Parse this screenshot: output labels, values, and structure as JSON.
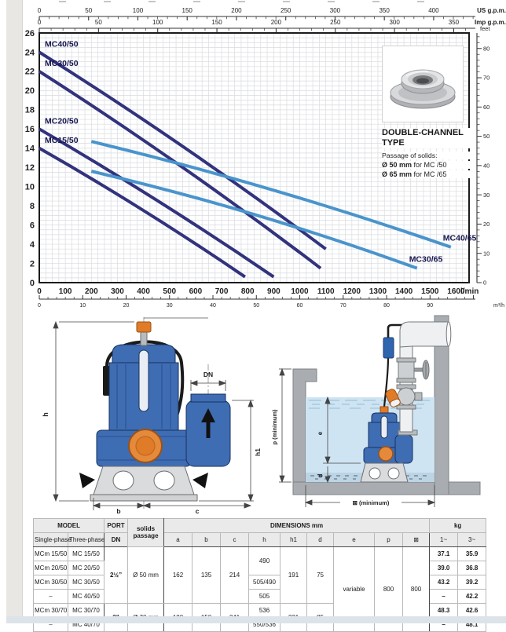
{
  "chart_data": {
    "type": "line",
    "title": "",
    "grid": true,
    "flow_axis": {
      "unit": "l/min",
      "min": 0,
      "max": 1650,
      "major": 100,
      "grid": 25,
      "label_max": 1600
    },
    "head_axis": {
      "unit": "m",
      "min": 0,
      "max": 26,
      "major": 2,
      "grid": 0.5
    },
    "m3h_axis": {
      "unit": "m³/h",
      "to_lmin": 16.667,
      "major": 10,
      "minor": 2,
      "label_max": 90
    },
    "us_gpm_axis": {
      "unit": "US g.p.m.",
      "to_lmin": 3.785,
      "major": 50,
      "minor": 10,
      "label_max": 400
    },
    "imp_gpm_axis": {
      "unit": "Imp g.p.m.",
      "to_lmin": 4.546,
      "major": 50,
      "minor": 10,
      "label_max": 350
    },
    "feet_axis": {
      "unit": "feet",
      "to_m": 0.3048,
      "major": 10,
      "minor": 2,
      "label_max": 80
    },
    "series": [
      {
        "name": "MC40/50",
        "color": "#32327d",
        "label_pos": "start",
        "points": [
          [
            0,
            24.0
          ],
          [
            550,
            14.2
          ],
          [
            1100,
            3.5
          ]
        ]
      },
      {
        "name": "MC30/50",
        "color": "#32327d",
        "label_pos": "start",
        "points": [
          [
            0,
            22.0
          ],
          [
            540,
            12.2
          ],
          [
            1080,
            1.5
          ]
        ]
      },
      {
        "name": "MC20/50",
        "color": "#32327d",
        "label_pos": "start",
        "points": [
          [
            0,
            16.0
          ],
          [
            450,
            8.6
          ],
          [
            900,
            0.6
          ]
        ]
      },
      {
        "name": "MC15/50",
        "color": "#32327d",
        "label_pos": "start",
        "points": [
          [
            0,
            14.0
          ],
          [
            395,
            7.6
          ],
          [
            790,
            0.6
          ]
        ]
      },
      {
        "name": "MC40/65",
        "color": "#4a94cc",
        "label_pos": "end",
        "points": [
          [
            200,
            14.7
          ],
          [
            890,
            9.7
          ],
          [
            1580,
            3.7
          ]
        ]
      },
      {
        "name": "MC30/65",
        "color": "#4a94cc",
        "label_pos": "end",
        "points": [
          [
            200,
            11.6
          ],
          [
            825,
            7.1
          ],
          [
            1450,
            1.5
          ]
        ]
      }
    ]
  },
  "product": {
    "title_line1": "DOUBLE-CHANNEL",
    "title_line2": "TYPE",
    "subtitle": "Passage of solids:",
    "line1_bold": "Ø 50 mm",
    "line1_rest": " for MC /50",
    "line2_bold": "Ø 65 mm",
    "line2_rest": " for MC /65"
  },
  "drawings": {
    "pump": {
      "h": "h",
      "dn": "DN",
      "h1": "h1",
      "b": "b",
      "c": "c"
    },
    "install": {
      "p": "p  (minimum)",
      "e": "e",
      "d": "d",
      "sq": "⊠ (minimum)"
    }
  },
  "table": {
    "headers": {
      "model": "MODEL",
      "single": "Single-phase",
      "three": "Three-phase",
      "port": "PORT",
      "dn": "DN",
      "solids": "solids passage",
      "dims": "DIMENSIONS mm",
      "a": "a",
      "b": "b",
      "c": "c",
      "h": "h",
      "h1": "h1",
      "d": "d",
      "e": "e",
      "p": "p",
      "sq": "⊠",
      "kg": "kg",
      "kg1": "1~",
      "kg3": "3~"
    },
    "groups": {
      "port50": "2½”",
      "sol50": "Ø 50 mm",
      "a50": "162",
      "b50": "135",
      "c50": "214",
      "h150": "191",
      "d50": "75",
      "port70": "3”",
      "sol70": "Ø 70 mm",
      "a70": "180",
      "b70": "150",
      "c70": "241",
      "h170": "231",
      "d70": "85",
      "h12": "490",
      "h3": "505/490",
      "h4": "505",
      "h5": "536",
      "h6": "550/536",
      "e": "variable",
      "p": "800",
      "sq": "800"
    },
    "rows": [
      {
        "single": "MCm 15/50",
        "three": "MC 15/50",
        "kg1": "37.1",
        "kg3": "35.9"
      },
      {
        "single": "MCm 20/50",
        "three": "MC 20/50",
        "kg1": "39.0",
        "kg3": "36.8"
      },
      {
        "single": "MCm 30/50",
        "three": "MC 30/50",
        "kg1": "43.2",
        "kg3": "39.2"
      },
      {
        "single": "–",
        "three": "MC 40/50",
        "kg1": "–",
        "kg3": "42.2"
      },
      {
        "single": "MCm 30/70",
        "three": "MC 30/70",
        "kg1": "48.3",
        "kg3": "42.6"
      },
      {
        "single": "–",
        "three": "MC 40/70",
        "kg1": "–",
        "kg3": "48.1"
      }
    ]
  }
}
